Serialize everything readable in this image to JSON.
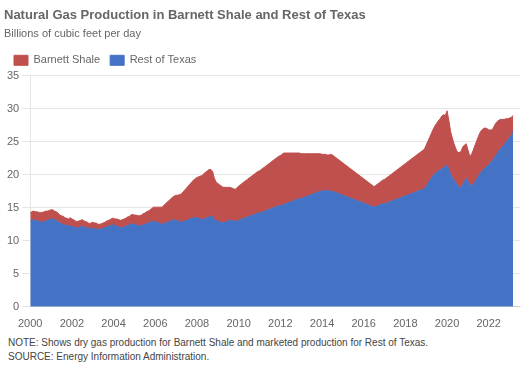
{
  "chart_data": {
    "type": "area",
    "stacked": true,
    "title": "Natural Gas Production in Barnett Shale and Rest of Texas",
    "subtitle": "Billions of cubic feet per day",
    "note": "NOTE: Shows dry gas production for Barnett Shale and marketed production for Rest of Texas.",
    "source": "SOURCE: Energy Information Administration.",
    "xlim": [
      2000,
      2023.5
    ],
    "ylim": [
      0,
      35
    ],
    "xticks": [
      2000,
      2002,
      2004,
      2006,
      2008,
      2010,
      2012,
      2014,
      2016,
      2018,
      2020,
      2022
    ],
    "yticks": [
      0,
      5,
      10,
      15,
      20,
      25,
      30,
      35
    ],
    "grid": "y",
    "legend": "upper left",
    "x": [
      2000.0,
      2000.083,
      2000.167,
      2000.25,
      2000.333,
      2000.417,
      2000.5,
      2000.583,
      2000.667,
      2000.75,
      2000.833,
      2000.917,
      2001.0,
      2001.083,
      2001.167,
      2001.25,
      2001.333,
      2001.417,
      2001.5,
      2001.583,
      2001.667,
      2001.75,
      2001.833,
      2001.917,
      2002.0,
      2002.083,
      2002.167,
      2002.25,
      2002.333,
      2002.417,
      2002.5,
      2002.583,
      2002.667,
      2002.75,
      2002.833,
      2002.917,
      2003.0,
      2003.083,
      2003.167,
      2003.25,
      2003.333,
      2003.417,
      2003.5,
      2003.583,
      2003.667,
      2003.75,
      2003.833,
      2003.917,
      2004.0,
      2004.083,
      2004.167,
      2004.25,
      2004.333,
      2004.417,
      2004.5,
      2004.583,
      2004.667,
      2004.75,
      2004.833,
      2004.917,
      2005.0,
      2005.083,
      2005.167,
      2005.25,
      2005.333,
      2005.417,
      2005.5,
      2005.583,
      2005.667,
      2005.75,
      2005.833,
      2005.917,
      2006.0,
      2006.083,
      2006.167,
      2006.25,
      2006.333,
      2006.417,
      2006.5,
      2006.583,
      2006.667,
      2006.75,
      2006.833,
      2006.917,
      2007.0,
      2007.083,
      2007.167,
      2007.25,
      2007.333,
      2007.417,
      2007.5,
      2007.583,
      2007.667,
      2007.75,
      2007.833,
      2007.917,
      2008.0,
      2008.083,
      2008.167,
      2008.25,
      2008.333,
      2008.417,
      2008.5,
      2008.583,
      2008.667,
      2008.75,
      2008.833,
      2008.917,
      2009.0,
      2009.083,
      2009.167,
      2009.25,
      2009.333,
      2009.417,
      2009.5,
      2009.583,
      2009.667,
      2009.75,
      2009.833,
      2009.917,
      2010.0,
      2010.083,
      2010.167,
      2010.25,
      2010.333,
      2010.417,
      2010.5,
      2010.583,
      2010.667,
      2010.75,
      2010.833,
      2010.917,
      2011.0,
      2011.083,
      2011.167,
      2011.25,
      2011.333,
      2011.417,
      2011.5,
      2011.583,
      2011.667,
      2011.75,
      2011.833,
      2011.917,
      2012.0,
      2012.083,
      2012.167,
      2012.25,
      2012.333,
      2012.417,
      2012.5,
      2012.583,
      2012.667,
      2012.75,
      2012.833,
      2012.917,
      2013.0,
      2013.083,
      2013.167,
      2013.25,
      2013.333,
      2013.417,
      2013.5,
      2013.583,
      2013.667,
      2013.75,
      2013.833,
      2013.917,
      2014.0,
      2014.083,
      2014.167,
      2014.25,
      2014.333,
      2014.417,
      2014.5,
      2014.583,
      2014.667,
      2014.75,
      2014.833,
      2014.917,
      2015.0,
      2015.083,
      2015.167,
      2015.25,
      2015.333,
      2015.417,
      2015.5,
      2015.583,
      2015.667,
      2015.75,
      2015.833,
      2015.917,
      2016.0,
      2016.083,
      2016.167,
      2016.25,
      2016.333,
      2016.417,
      2016.5,
      2016.583,
      2016.667,
      2016.75,
      2016.833,
      2016.917,
      2017.0,
      2017.083,
      2017.167,
      2017.25,
      2017.333,
      2017.417,
      2017.5,
      2017.583,
      2017.667,
      2017.75,
      2017.833,
      2017.917,
      2018.0,
      2018.083,
      2018.167,
      2018.25,
      2018.333,
      2018.417,
      2018.5,
      2018.583,
      2018.667,
      2018.75,
      2018.833,
      2018.917,
      2019.0,
      2019.083,
      2019.167,
      2019.25,
      2019.333,
      2019.417,
      2019.5,
      2019.583,
      2019.667,
      2019.75,
      2019.833,
      2019.917,
      2020.0,
      2020.083,
      2020.167,
      2020.25,
      2020.333,
      2020.417,
      2020.5,
      2020.583,
      2020.667,
      2020.75,
      2020.833,
      2020.917,
      2021.0,
      2021.083,
      2021.167,
      2021.25,
      2021.333,
      2021.417,
      2021.5,
      2021.583,
      2021.667,
      2021.75,
      2021.833,
      2021.917,
      2022.0,
      2022.083,
      2022.167,
      2022.25,
      2022.333,
      2022.417,
      2022.5,
      2022.583,
      2022.667,
      2022.75,
      2022.833,
      2022.917,
      2023.0,
      2023.083,
      2023.167
    ],
    "series": [
      {
        "name": "Rest of Texas",
        "color": "#4472C4",
        "values": [
          13.0,
          13.1,
          13.2,
          13.1,
          13.0,
          12.9,
          12.9,
          12.8,
          12.9,
          13.0,
          13.1,
          13.2,
          13.3,
          13.3,
          13.2,
          13.1,
          12.9,
          12.7,
          12.6,
          12.5,
          12.4,
          12.3,
          12.2,
          12.3,
          12.2,
          12.1,
          12.0,
          11.9,
          12.0,
          12.1,
          12.2,
          12.1,
          12.0,
          11.9,
          11.8,
          11.9,
          11.9,
          11.8,
          11.8,
          11.7,
          11.7,
          11.8,
          11.9,
          12.0,
          12.1,
          12.2,
          12.3,
          12.4,
          12.4,
          12.3,
          12.2,
          12.1,
          12.0,
          12.0,
          12.1,
          12.2,
          12.3,
          12.4,
          12.5,
          12.6,
          12.5,
          12.4,
          12.3,
          12.2,
          12.3,
          12.4,
          12.5,
          12.6,
          12.7,
          12.8,
          12.9,
          13.0,
          12.9,
          12.8,
          12.7,
          12.6,
          12.5,
          12.6,
          12.7,
          12.8,
          12.9,
          13.0,
          13.1,
          13.2,
          13.1,
          13.0,
          12.9,
          12.8,
          12.9,
          13.0,
          13.1,
          13.2,
          13.3,
          13.4,
          13.5,
          13.5,
          13.5,
          13.4,
          13.3,
          13.2,
          13.3,
          13.4,
          13.5,
          13.6,
          13.7,
          13.7,
          13.3,
          13.0,
          13.0,
          12.9,
          12.8,
          12.7,
          12.8,
          12.9,
          13.0,
          13.1,
          13.1,
          13.0,
          12.9,
          13.0,
          13.1,
          13.2,
          13.3,
          13.4,
          13.5,
          13.6,
          13.7,
          13.8,
          13.9,
          14.0,
          14.1,
          14.2,
          14.2,
          14.3,
          14.4,
          14.5,
          14.6,
          14.7,
          14.8,
          14.9,
          15.0,
          15.1,
          15.2,
          15.3,
          15.3,
          15.4,
          15.5,
          15.6,
          15.7,
          15.8,
          15.9,
          16.0,
          16.1,
          16.2,
          16.3,
          16.4,
          16.4,
          16.5,
          16.6,
          16.7,
          16.8,
          16.9,
          17.0,
          17.1,
          17.2,
          17.3,
          17.4,
          17.5,
          17.5,
          17.6,
          17.7,
          17.6,
          17.5,
          17.5,
          17.5,
          17.4,
          17.3,
          17.2,
          17.1,
          17.0,
          16.9,
          16.8,
          16.7,
          16.6,
          16.5,
          16.4,
          16.3,
          16.2,
          16.1,
          16.0,
          15.9,
          15.8,
          15.7,
          15.6,
          15.5,
          15.4,
          15.3,
          15.2,
          15.1,
          15.2,
          15.3,
          15.4,
          15.5,
          15.6,
          15.6,
          15.7,
          15.8,
          15.9,
          16.0,
          16.1,
          16.2,
          16.3,
          16.4,
          16.5,
          16.6,
          16.7,
          16.8,
          16.9,
          17.0,
          17.1,
          17.2,
          17.3,
          17.4,
          17.5,
          17.6,
          17.7,
          17.8,
          17.9,
          18.3,
          18.7,
          19.1,
          19.5,
          19.9,
          20.2,
          20.4,
          20.6,
          20.7,
          20.9,
          21.1,
          21.2,
          21.5,
          20.8,
          20.1,
          19.6,
          19.2,
          18.8,
          18.4,
          18.2,
          18.0,
          18.5,
          19.0,
          19.5,
          19.0,
          18.6,
          18.3,
          18.5,
          18.9,
          19.3,
          19.8,
          20.2,
          20.5,
          20.8,
          21.1,
          21.3,
          21.5,
          21.8,
          22.1,
          22.5,
          22.9,
          23.3,
          23.7,
          24.0,
          24.3,
          24.6,
          25.0,
          25.3,
          25.6,
          26.0,
          26.5
        ]
      },
      {
        "name": "Barnett Shale",
        "color": "#C0504D",
        "values": [
          1.3,
          1.3,
          1.3,
          1.3,
          1.4,
          1.4,
          1.4,
          1.5,
          1.5,
          1.5,
          1.4,
          1.4,
          1.4,
          1.4,
          1.3,
          1.3,
          1.3,
          1.2,
          1.2,
          1.2,
          1.1,
          1.1,
          1.1,
          1.2,
          1.1,
          1.1,
          1.0,
          1.0,
          1.0,
          1.0,
          1.0,
          0.9,
          0.9,
          0.9,
          0.8,
          0.8,
          0.9,
          0.9,
          0.9,
          0.8,
          0.8,
          0.8,
          0.8,
          0.8,
          0.9,
          0.9,
          0.9,
          1.0,
          1.0,
          1.0,
          1.1,
          1.1,
          1.1,
          1.2,
          1.2,
          1.2,
          1.3,
          1.3,
          1.4,
          1.4,
          1.4,
          1.5,
          1.5,
          1.6,
          1.6,
          1.7,
          1.7,
          1.8,
          1.8,
          1.9,
          2.0,
          2.1,
          2.2,
          2.3,
          2.4,
          2.5,
          2.6,
          2.8,
          2.9,
          3.1,
          3.2,
          3.4,
          3.5,
          3.6,
          3.8,
          3.9,
          4.1,
          4.3,
          4.5,
          4.7,
          4.9,
          5.1,
          5.3,
          5.5,
          5.7,
          5.9,
          6.1,
          6.3,
          6.5,
          6.7,
          6.9,
          7.0,
          7.1,
          7.2,
          7.1,
          6.8,
          6.2,
          5.9,
          5.7,
          5.6,
          5.5,
          5.4,
          5.3,
          5.2,
          5.1,
          5.0,
          4.9,
          4.9,
          4.9,
          5.0,
          5.2,
          5.3,
          5.4,
          5.5,
          5.6,
          5.7,
          5.8,
          5.9,
          6.0,
          6.1,
          6.2,
          6.3,
          6.4,
          6.5,
          6.6,
          6.7,
          6.8,
          6.9,
          7.0,
          7.1,
          7.2,
          7.3,
          7.4,
          7.5,
          7.6,
          7.7,
          7.8,
          7.7,
          7.6,
          7.5,
          7.4,
          7.3,
          7.2,
          7.1,
          7.0,
          6.9,
          6.8,
          6.7,
          6.6,
          6.5,
          6.4,
          6.3,
          6.2,
          6.1,
          6.0,
          5.9,
          5.8,
          5.7,
          5.6,
          5.5,
          5.4,
          5.4,
          5.5,
          5.6,
          5.5,
          5.4,
          5.3,
          5.2,
          5.1,
          5.0,
          4.9,
          4.8,
          4.7,
          4.6,
          4.5,
          4.4,
          4.3,
          4.2,
          4.1,
          4.0,
          3.9,
          3.8,
          3.7,
          3.6,
          3.5,
          3.4,
          3.3,
          3.2,
          3.1,
          3.2,
          3.3,
          3.4,
          3.5,
          3.6,
          3.7,
          3.8,
          3.9,
          4.0,
          4.1,
          4.2,
          4.3,
          4.4,
          4.5,
          4.6,
          4.7,
          4.8,
          4.9,
          5.0,
          5.1,
          5.2,
          5.3,
          5.4,
          5.5,
          5.6,
          5.7,
          5.8,
          5.9,
          6.0,
          6.2,
          6.4,
          6.6,
          6.8,
          7.0,
          7.2,
          7.4,
          7.6,
          7.8,
          8.0,
          8.0,
          7.8,
          8.2,
          7.5,
          6.5,
          6.0,
          5.5,
          5.2,
          5.0,
          5.2,
          5.5,
          5.7,
          5.5,
          5.2,
          4.8,
          4.3,
          4.7,
          5.2,
          5.5,
          5.8,
          6.0,
          6.2,
          6.3,
          6.2,
          6.0,
          5.7,
          5.3,
          5.0,
          4.7,
          4.8,
          4.9,
          4.8,
          4.6,
          4.4,
          4.1,
          3.8,
          3.5,
          3.2,
          3.0,
          2.7,
          2.5
        ]
      }
    ]
  }
}
